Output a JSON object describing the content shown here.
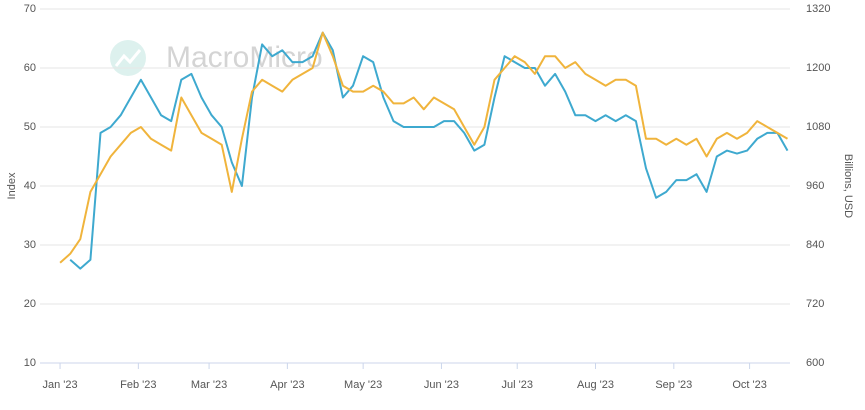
{
  "chart_data": {
    "type": "line",
    "watermark": "MacroMicro",
    "ylabel": "Index",
    "y2label": "Billions, USD",
    "x": [
      0,
      4,
      8,
      12,
      16,
      20,
      24,
      28,
      32,
      36,
      40,
      44,
      48,
      52,
      56,
      60,
      64,
      68,
      72,
      76,
      80,
      84,
      88,
      92,
      96,
      100,
      104,
      108,
      112,
      116,
      120,
      124,
      128,
      132,
      136,
      140,
      144,
      148,
      152,
      156,
      160,
      164,
      168,
      172,
      176,
      180,
      184,
      188,
      192,
      196,
      200,
      204,
      208,
      212,
      216,
      220,
      224,
      228,
      232,
      236,
      240,
      244,
      248,
      252,
      256,
      260,
      264,
      268,
      272,
      276,
      280,
      284,
      288
    ],
    "xlim": [
      -2,
      289
    ],
    "xticks": [
      {
        "value": 0,
        "label": "Jan '23"
      },
      {
        "value": 31,
        "label": "Feb '23"
      },
      {
        "value": 59,
        "label": "Mar '23"
      },
      {
        "value": 90,
        "label": "Apr '23"
      },
      {
        "value": 120,
        "label": "May '23"
      },
      {
        "value": 151,
        "label": "Jun '23"
      },
      {
        "value": 181,
        "label": "Jul '23"
      },
      {
        "value": 212,
        "label": "Aug '23"
      },
      {
        "value": 243,
        "label": "Sep '23"
      },
      {
        "value": 273,
        "label": "Oct '23"
      }
    ],
    "ylim": [
      10,
      70
    ],
    "yticks": [
      10,
      20,
      30,
      40,
      50,
      60,
      70
    ],
    "y2lim": [
      600,
      1320
    ],
    "y2ticks": [
      600,
      720,
      840,
      960,
      1080,
      1200,
      1320
    ],
    "grid": true,
    "series": [
      {
        "color": "#3ea9cf",
        "values": [
          null,
          27.5,
          26,
          27.5,
          49,
          50,
          52,
          55,
          58,
          55,
          52,
          51,
          58,
          59,
          55,
          52,
          50,
          44,
          40,
          55,
          64,
          62,
          63,
          61,
          61,
          62,
          66,
          63,
          55,
          57,
          62,
          61,
          55,
          51,
          50,
          50,
          50,
          50,
          51,
          51,
          49,
          46,
          47,
          55,
          62,
          61,
          60,
          60,
          57,
          59,
          56,
          52,
          52,
          51,
          52,
          51,
          52,
          51,
          43,
          38,
          39,
          41,
          41,
          42,
          39,
          45,
          46,
          45.5,
          46,
          48,
          49,
          49,
          46
        ]
      },
      {
        "color": "#f0b43c",
        "axis": "y2",
        "values": [
          804,
          822,
          852,
          948,
          984,
          1020,
          1044,
          1068,
          1080,
          1056,
          1044,
          1032,
          1140,
          1104,
          1068,
          1056,
          1044,
          948,
          1056,
          1152,
          1176,
          1164,
          1152,
          1176,
          1188,
          1200,
          1272,
          1224,
          1164,
          1152,
          1152,
          1164,
          1152,
          1128,
          1128,
          1140,
          1116,
          1140,
          1128,
          1116,
          1080,
          1044,
          1080,
          1176,
          1200,
          1224,
          1212,
          1188,
          1224,
          1224,
          1200,
          1212,
          1188,
          1176,
          1164,
          1176,
          1176,
          1164,
          1056,
          1056,
          1044,
          1056,
          1044,
          1056,
          1020,
          1056,
          1068,
          1056,
          1068,
          1092,
          1080,
          1068,
          1056
        ]
      }
    ]
  }
}
